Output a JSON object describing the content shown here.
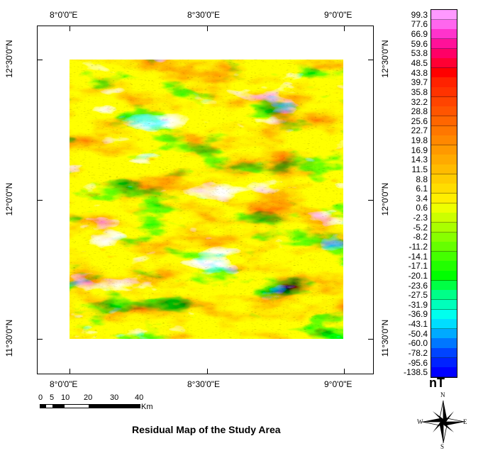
{
  "title": "Residual Map of the Study Area",
  "unit": "nT",
  "axes": {
    "top": [
      "8°0'0\"E",
      "8°30'0\"E",
      "9°0'0\"E"
    ],
    "bottom": [
      "8°0'0\"E",
      "8°30'0\"E",
      "9°0'0\"E"
    ],
    "left": [
      "12°30'0\"N",
      "12°0'0\"N",
      "11°30'0\"N"
    ],
    "right": [
      "12°30'0\"N",
      "12°0'0\"N",
      "11°30'0\"N"
    ]
  },
  "legend": {
    "values": [
      "99.3",
      "77.6",
      "66.9",
      "59.6",
      "53.8",
      "48.5",
      "43.8",
      "39.7",
      "35.8",
      "32.2",
      "28.8",
      "25.6",
      "22.7",
      "19.8",
      "16.9",
      "14.3",
      "11.5",
      "8.8",
      "6.1",
      "3.4",
      "0.6",
      "-2.3",
      "-5.2",
      "-8.2",
      "-11.2",
      "-14.1",
      "-17.1",
      "-20.1",
      "-23.6",
      "-27.5",
      "-31.9",
      "-36.9",
      "-43.1",
      "-50.4",
      "-60.0",
      "-78.2",
      "-95.6",
      "-138.5"
    ],
    "colors": [
      "#ff99ff",
      "#ff66ee",
      "#ff33cc",
      "#ff1199",
      "#ff0066",
      "#ff0033",
      "#ff0000",
      "#ff2200",
      "#ff3300",
      "#ff4400",
      "#ff5500",
      "#ff6600",
      "#ff7700",
      "#ff8800",
      "#ff9900",
      "#ffaa00",
      "#ffbb00",
      "#ffcc00",
      "#ffdd00",
      "#ffee00",
      "#eeff00",
      "#ccff00",
      "#aaff00",
      "#88ff00",
      "#66ff00",
      "#44ff00",
      "#22ff00",
      "#00ff00",
      "#00ff44",
      "#00ff88",
      "#00ffbb",
      "#00ffee",
      "#00ddff",
      "#00aaff",
      "#0077ff",
      "#0044ff",
      "#0022ff",
      "#0000ff"
    ]
  },
  "scale": {
    "labels": [
      "0",
      "5",
      "10",
      "20",
      "30",
      "40"
    ],
    "unit": "Km"
  },
  "compass": {
    "n": "N",
    "s": "S",
    "e": "E",
    "w": "W"
  }
}
